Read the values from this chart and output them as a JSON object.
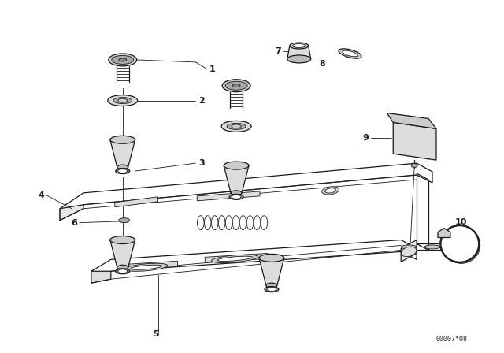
{
  "bg_color": "#ffffff",
  "line_color": "#1a1a1a",
  "fig_width": 6.4,
  "fig_height": 4.48,
  "dpi": 100,
  "doc_number": "00007*08"
}
